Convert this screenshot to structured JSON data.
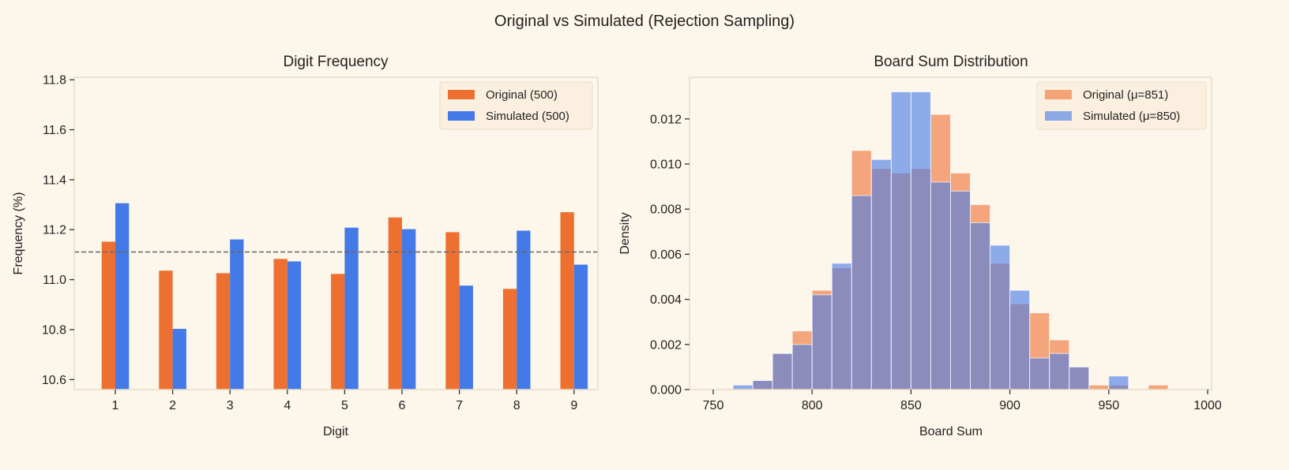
{
  "suptitle": "Original vs Simulated (Rejection Sampling)",
  "colors": {
    "background": "#FDF6EA",
    "original": "#EE7030",
    "simulated": "#4479E8",
    "reference_line": "#666666"
  },
  "chart_data": [
    {
      "type": "bar",
      "title": "Digit Frequency",
      "xlabel": "Digit",
      "ylabel": "Frequency (%)",
      "categories": [
        "1",
        "2",
        "3",
        "4",
        "5",
        "6",
        "7",
        "8",
        "9"
      ],
      "ylim": [
        10.56,
        11.81
      ],
      "yticks": [
        "10.6",
        "10.8",
        "11.0",
        "11.2",
        "11.4",
        "11.6",
        "11.8"
      ],
      "reference_line": {
        "y": 11.111,
        "style": "dashed"
      },
      "grid": false,
      "legend": "top-right",
      "series": [
        {
          "name": "Original (500)",
          "values": [
            11.152,
            11.036,
            11.026,
            11.083,
            11.023,
            11.249,
            11.19,
            10.963,
            11.27
          ]
        },
        {
          "name": "Simulated (500)",
          "values": [
            11.306,
            10.803,
            11.161,
            11.073,
            11.208,
            11.202,
            10.976,
            11.196,
            11.06
          ]
        }
      ]
    },
    {
      "type": "histogram",
      "title": "Board Sum Distribution",
      "xlabel": "Board Sum",
      "ylabel": "Density",
      "xlim": [
        740,
        1000
      ],
      "ylim": [
        0,
        0.0138
      ],
      "xticks": [
        "750",
        "800",
        "850",
        "900",
        "950",
        "1000"
      ],
      "yticks": [
        "0.000",
        "0.002",
        "0.004",
        "0.006",
        "0.008",
        "0.010",
        "0.012"
      ],
      "grid": false,
      "legend": "top-right",
      "bin_edges": [
        760,
        770,
        780,
        790,
        800,
        810,
        820,
        830,
        840,
        850,
        860,
        870,
        880,
        890,
        900,
        910,
        920,
        930,
        940,
        950,
        960,
        970,
        980
      ],
      "series": [
        {
          "name": "Original (μ=851)",
          "values": [
            0,
            0.0004,
            0.0016,
            0.0026,
            0.0044,
            0.0054,
            0.0106,
            0.0098,
            0.0096,
            0.0098,
            0.0122,
            0.0096,
            0.0082,
            0.0056,
            0.0038,
            0.0034,
            0.0022,
            0.001,
            0.0002,
            0.0002,
            0,
            0.0002
          ]
        },
        {
          "name": "Simulated (μ=850)",
          "values": [
            0.0002,
            0.0004,
            0.0016,
            0.002,
            0.0042,
            0.0056,
            0.0086,
            0.0102,
            0.0132,
            0.0132,
            0.0092,
            0.0088,
            0.0074,
            0.0064,
            0.0044,
            0.0014,
            0.0016,
            0.001,
            0,
            0.0006,
            0,
            0
          ]
        }
      ]
    }
  ]
}
